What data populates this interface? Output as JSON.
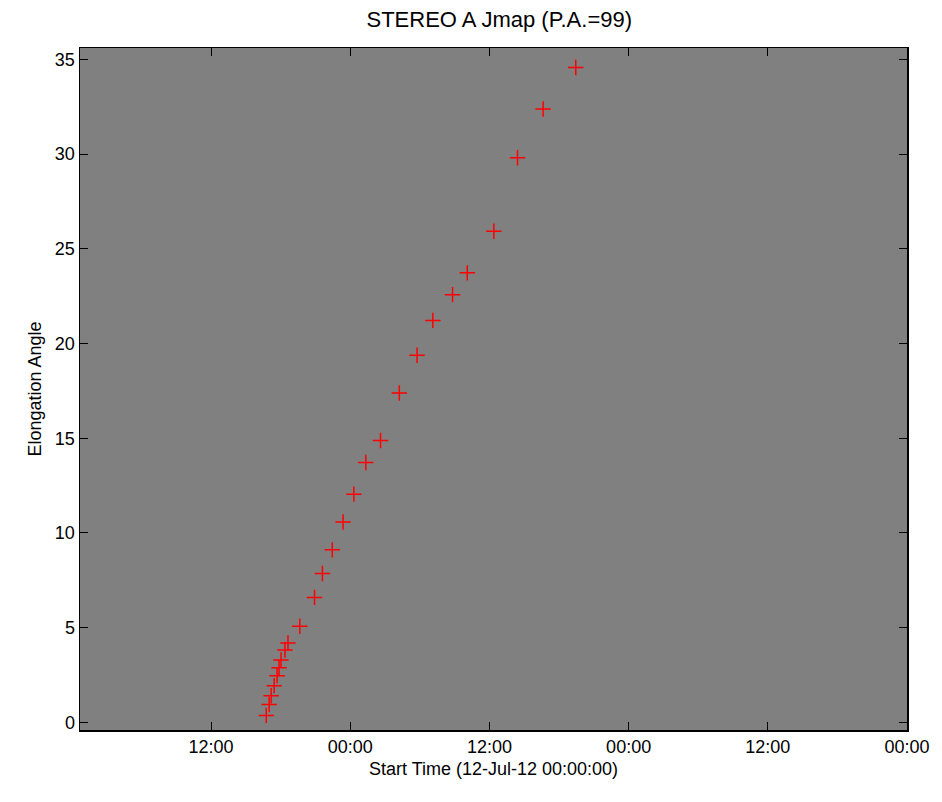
{
  "chart_data": {
    "type": "scatter",
    "title": "STEREO A Jmap (P.A.=99)",
    "x_label": "Start Time (12-Jul-12 00:00:00)",
    "y_label": "Elongation Angle",
    "x": [
      16.76,
      17.01,
      17.18,
      17.44,
      17.69,
      17.86,
      18.03,
      18.37,
      18.63,
      19.65,
      20.92,
      21.6,
      22.45,
      23.38,
      24.31,
      25.34,
      26.61,
      28.23,
      29.76,
      31.12,
      32.82,
      34.09,
      36.38,
      38.42,
      40.63,
      43.44
    ],
    "values": [
      0.37,
      0.94,
      1.41,
      1.94,
      2.46,
      2.88,
      3.3,
      3.82,
      4.19,
      5.08,
      6.6,
      7.86,
      9.11,
      10.58,
      12.05,
      13.72,
      14.88,
      17.39,
      19.38,
      21.22,
      22.58,
      23.73,
      25.93,
      29.81,
      32.38,
      34.57
    ],
    "color": "#ff0000",
    "marker": "cross",
    "xlim": [
      0.7,
      72
    ],
    "xticks": [
      {
        "value": 12,
        "label": "12:00"
      },
      {
        "value": 24,
        "label": "00:00"
      },
      {
        "value": 36,
        "label": "12:00"
      },
      {
        "value": 48,
        "label": "00:00"
      },
      {
        "value": 60,
        "label": "12:00"
      },
      {
        "value": 72,
        "label": "00:00"
      }
    ],
    "ylim": [
      -0.4,
      35.6
    ],
    "yticks": [
      0,
      5,
      10,
      15,
      20,
      25,
      30,
      35
    ],
    "grid": false
  }
}
